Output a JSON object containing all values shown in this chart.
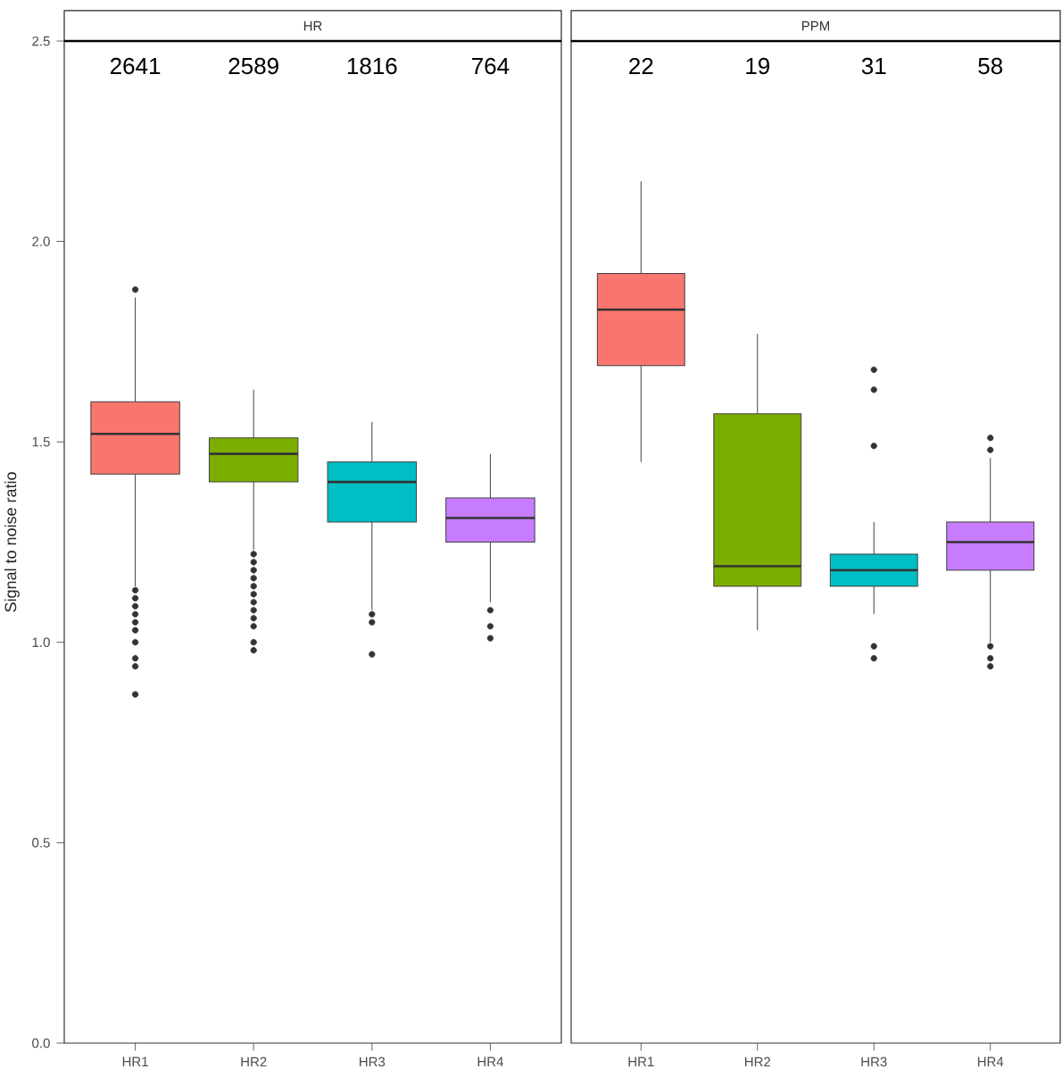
{
  "chart_data": [
    {
      "type": "box",
      "title": "HR",
      "ylabel": "Signal to noise ratio",
      "categories": [
        "HR1",
        "HR2",
        "HR3",
        "HR4"
      ],
      "colors": [
        "#f8766d",
        "#7cae00",
        "#00bfc4",
        "#c77cff"
      ],
      "ylim": [
        0,
        2.5
      ],
      "yticks": [
        {
          "value": 0,
          "label": "0.0"
        },
        {
          "value": 0.5,
          "label": "0.5"
        },
        {
          "value": 1,
          "label": "1.0"
        },
        {
          "value": 1.5,
          "label": "1.5"
        },
        {
          "value": 2,
          "label": "2.0"
        },
        {
          "value": 2.5,
          "label": "2.5"
        }
      ],
      "boxes": [
        {
          "low": 1.14,
          "q1": 1.42,
          "median": 1.52,
          "q3": 1.6,
          "high": 1.86,
          "outliers": [
            1.88,
            1.13,
            1.11,
            1.09,
            1.07,
            1.05,
            1.03,
            1.0,
            0.96,
            0.94,
            0.87
          ]
        },
        {
          "low": 1.23,
          "q1": 1.4,
          "median": 1.47,
          "q3": 1.51,
          "high": 1.63,
          "outliers": [
            1.22,
            1.2,
            1.18,
            1.16,
            1.14,
            1.12,
            1.1,
            1.08,
            1.06,
            1.04,
            1.0,
            0.98
          ]
        },
        {
          "low": 1.08,
          "q1": 1.3,
          "median": 1.4,
          "q3": 1.45,
          "high": 1.55,
          "outliers": [
            1.07,
            1.05,
            0.97
          ]
        },
        {
          "low": 1.1,
          "q1": 1.25,
          "median": 1.31,
          "q3": 1.36,
          "high": 1.47,
          "outliers": [
            1.08,
            1.04,
            1.01
          ]
        }
      ],
      "annotations": [
        "2641",
        "2589",
        "1816",
        "764"
      ]
    },
    {
      "type": "box",
      "title": "PPM",
      "categories": [
        "HR1",
        "HR2",
        "HR3",
        "HR4"
      ],
      "colors": [
        "#f8766d",
        "#7cae00",
        "#00bfc4",
        "#c77cff"
      ],
      "ylim": [
        0,
        2.5
      ],
      "tick_labels": "x",
      "boxes": [
        {
          "low": 1.45,
          "q1": 1.69,
          "median": 1.83,
          "q3": 1.92,
          "high": 2.15
        },
        {
          "low": 1.03,
          "q1": 1.14,
          "median": 1.19,
          "q3": 1.57,
          "high": 1.77
        },
        {
          "low": 1.07,
          "q1": 1.14,
          "median": 1.18,
          "q3": 1.22,
          "high": 1.3,
          "outliers": [
            1.68,
            1.63,
            1.49,
            0.99,
            0.96
          ]
        },
        {
          "low": 1.0,
          "q1": 1.18,
          "median": 1.25,
          "q3": 1.3,
          "high": 1.46,
          "outliers": [
            1.51,
            1.48,
            0.99,
            0.96,
            0.94
          ]
        }
      ],
      "annotations": [
        "22",
        "19",
        "31",
        "58"
      ]
    }
  ]
}
